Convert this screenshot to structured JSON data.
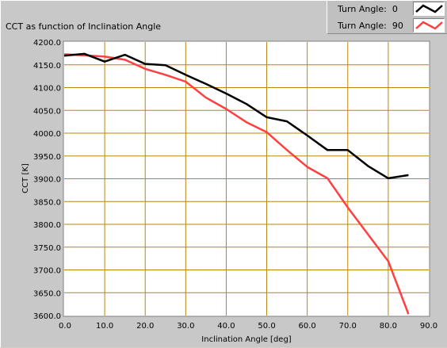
{
  "title": "CCT as function of Inclination Angle",
  "legend": [
    {
      "label": "Turn Angle:",
      "value": "0",
      "color": "#000000"
    },
    {
      "label": "Turn Angle:",
      "value": "90",
      "color": "#ff4040"
    }
  ],
  "colors": {
    "plot_bg": "#ffffff",
    "grid": "#b8860b",
    "series_0": "#000000",
    "series_90": "#ff4040"
  },
  "chart_data": {
    "type": "line",
    "title": "CCT as function of Inclination Angle",
    "xlabel": "Inclination Angle [deg]",
    "ylabel": "CCT [K]",
    "xlim": [
      0,
      90
    ],
    "ylim": [
      3600,
      4200
    ],
    "xticks": [
      "0.0",
      "10.0",
      "20.0",
      "30.0",
      "40.0",
      "50.0",
      "60.0",
      "70.0",
      "80.0",
      "90.0"
    ],
    "yticks": [
      "4200.0",
      "4150.0",
      "4100.0",
      "4050.0",
      "4000.0",
      "3950.0",
      "3900.0",
      "3850.0",
      "3800.0",
      "3750.0",
      "3700.0",
      "3650.0",
      "3600.0"
    ],
    "grid": true,
    "legend_position": "top-right",
    "series": [
      {
        "name": "Turn Angle: 0",
        "color": "#000000",
        "x": [
          0,
          5,
          10,
          15,
          20,
          25,
          30,
          35,
          40,
          45,
          50,
          55,
          60,
          65,
          70,
          75,
          80,
          85
        ],
        "y": [
          4170,
          4174,
          4157,
          4172,
          4152,
          4149,
          4128,
          4108,
          4087,
          4064,
          4035,
          4026,
          3995,
          3963,
          3963,
          3928,
          3901,
          3908
        ]
      },
      {
        "name": "Turn Angle: 90",
        "color": "#ff4040",
        "x": [
          0,
          5,
          10,
          15,
          20,
          25,
          30,
          35,
          40,
          45,
          50,
          55,
          60,
          65,
          70,
          75,
          80,
          85
        ],
        "y": [
          4173,
          4171,
          4168,
          4161,
          4141,
          4128,
          4113,
          4078,
          4053,
          4024,
          4002,
          3963,
          3926,
          3901,
          3837,
          3778,
          3719,
          3603
        ]
      }
    ]
  }
}
